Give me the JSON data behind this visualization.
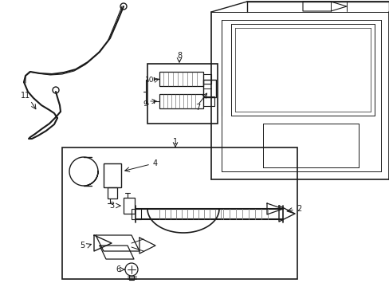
{
  "background_color": "#ffffff",
  "line_color": "#1a1a1a",
  "gray_color": "#888888",
  "figsize": [
    4.89,
    3.6
  ],
  "dpi": 100
}
